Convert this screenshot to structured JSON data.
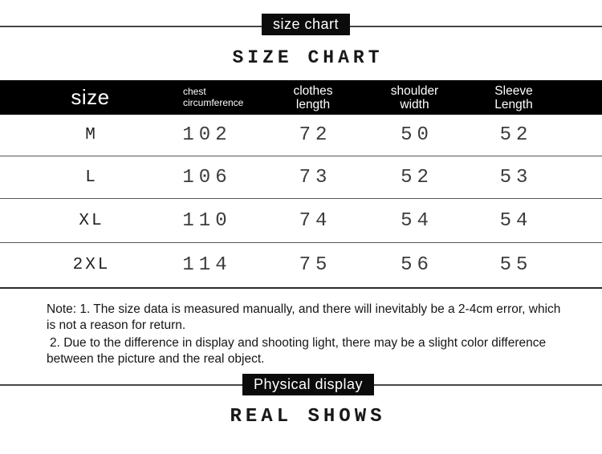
{
  "colors": {
    "page_bg": "#ffffff",
    "badge_bg": "#0b0b0b",
    "header_bg": "#000000",
    "rule_gray": "#474747",
    "number_text": "#3c3c3c"
  },
  "top_section": {
    "badge_label": "size chart",
    "title": "SIZE CHART"
  },
  "size_table": {
    "header": {
      "size": "size",
      "chest_line1": "chest",
      "chest_line2": "circumference",
      "clothes_line1": "clothes",
      "clothes_line2": "length",
      "shoulder_line1": "shoulder",
      "shoulder_line2": "width",
      "sleeve_line1": "Sleeve",
      "sleeve_line2": "Length"
    },
    "rows": [
      {
        "size": "M",
        "chest": "102",
        "clothes": "72",
        "shoulder": "50",
        "sleeve": "52"
      },
      {
        "size": "L",
        "chest": "106",
        "clothes": "73",
        "shoulder": "52",
        "sleeve": "53"
      },
      {
        "size": "XL",
        "chest": "110",
        "clothes": "74",
        "shoulder": "54",
        "sleeve": "54"
      },
      {
        "size": "2XL",
        "chest": "114",
        "clothes": "75",
        "shoulder": "56",
        "sleeve": "55"
      }
    ]
  },
  "notes": {
    "line1": "Note: 1. The size data is measured manually, and there will inevitably be a 2-4cm error, which",
    "line2": "is not a reason for return.",
    "line3": "2. Due to the difference in display and shooting light, there may be a slight color difference",
    "line4": "between the picture and the real object."
  },
  "bottom_section": {
    "badge_label": "Physical display",
    "title": "REAL SHOWS"
  },
  "chart_data": {
    "type": "table",
    "title": "SIZE CHART",
    "columns": [
      "size",
      "chest circumference",
      "clothes length",
      "shoulder width",
      "Sleeve Length"
    ],
    "rows": [
      [
        "M",
        102,
        72,
        50,
        52
      ],
      [
        "L",
        106,
        73,
        52,
        53
      ],
      [
        "XL",
        110,
        74,
        54,
        54
      ],
      [
        "2XL",
        114,
        75,
        56,
        55
      ]
    ],
    "units": "cm",
    "notes": [
      "Note: 1. The size data is measured manually, and there will inevitably be a 2-4cm error, which is not a reason for return.",
      "2. Due to the difference in display and shooting light, there may be a slight color difference between the picture and the real object."
    ]
  }
}
